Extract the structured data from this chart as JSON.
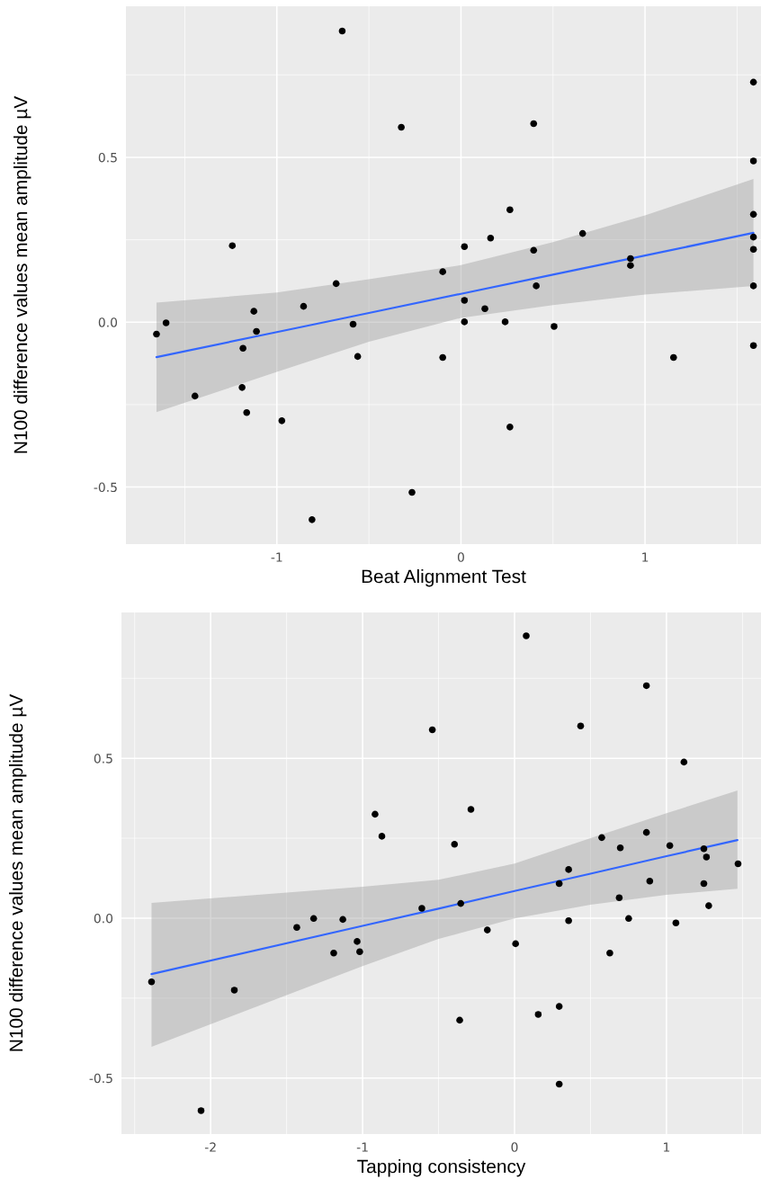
{
  "chart_data": [
    {
      "type": "scatter",
      "xlabel": "Beat Alignment Test",
      "ylabel": "N100 difference values mean amplitude µV",
      "xlim": [
        -1.82,
        1.63
      ],
      "ylim": [
        -0.673,
        0.958
      ],
      "xticks": [
        -1,
        0,
        1
      ],
      "yticks": [
        {
          "value": -0.5,
          "label": "-0.5"
        },
        {
          "value": 0,
          "label": "0.0"
        },
        {
          "value": 0.5,
          "label": "0.5"
        }
      ],
      "grid": true,
      "legend": false,
      "series": [
        {
          "color": "#000000",
          "marker": "circle",
          "x": [
            -1.654,
            -1.602,
            -1.445,
            -1.242,
            -1.184,
            -1.189,
            -1.164,
            -1.125,
            -1.111,
            -0.973,
            -0.855,
            -0.809,
            -0.678,
            -0.645,
            -0.586,
            -0.561,
            -0.324,
            -0.266,
            -0.099,
            -0.099,
            0.019,
            0.019,
            0.019,
            0.13,
            0.161,
            0.24,
            0.266,
            0.266,
            0.395,
            0.395,
            0.409,
            0.506,
            0.661,
            0.921,
            0.921,
            1.155,
            1.589,
            1.589,
            1.589,
            1.589,
            1.589,
            1.589,
            1.589
          ],
          "values": [
            -0.036,
            -0.002,
            -0.224,
            0.232,
            -0.079,
            -0.198,
            -0.274,
            0.033,
            -0.028,
            -0.299,
            0.048,
            -0.599,
            0.117,
            0.883,
            -0.006,
            -0.104,
            0.591,
            -0.516,
            0.153,
            -0.107,
            0.229,
            0.066,
            0.001,
            0.041,
            0.255,
            0.001,
            0.341,
            -0.318,
            0.602,
            0.218,
            0.11,
            -0.013,
            0.269,
            0.193,
            0.172,
            -0.107,
            0.728,
            0.489,
            0.327,
            0.258,
            0.221,
            0.11,
            -0.071
          ]
        },
        {
          "type": "line",
          "color": "#3366ff",
          "marker": "none",
          "x": [
            -1.654,
            -1,
            -0.5,
            0,
            0.5,
            1,
            1.589
          ],
          "values": [
            -0.106,
            -0.03,
            0.028,
            0.086,
            0.144,
            0.202,
            0.271
          ],
          "lower": [
            -0.273,
            -0.151,
            -0.059,
            0.013,
            0.052,
            0.084,
            0.11
          ],
          "upper": [
            0.059,
            0.09,
            0.13,
            0.173,
            0.243,
            0.324,
            0.434
          ]
        }
      ]
    },
    {
      "type": "scatter",
      "xlabel": "Tapping consistency",
      "ylabel": "N100 difference values mean amplitude µV",
      "xlim": [
        -2.587,
        1.622
      ],
      "ylim": [
        -0.675,
        0.956
      ],
      "xticks": [
        -2,
        -1,
        0,
        1
      ],
      "yticks": [
        {
          "value": -0.5,
          "label": "-0.5"
        },
        {
          "value": 0,
          "label": "0.0"
        },
        {
          "value": 0.5,
          "label": "0.5"
        }
      ],
      "grid": true,
      "legend": false,
      "series": [
        {
          "color": "#000000",
          "marker": "circle",
          "x": [
            -2.389,
            -2.063,
            -1.844,
            -1.433,
            -1.322,
            -1.19,
            -1.13,
            -1.036,
            -1.019,
            -0.918,
            -0.873,
            -0.61,
            -0.541,
            -0.395,
            -0.361,
            -0.354,
            -0.287,
            -0.179,
            0.007,
            0.077,
            0.156,
            0.294,
            0.294,
            0.294,
            0.356,
            0.356,
            0.435,
            0.574,
            0.627,
            0.689,
            0.696,
            0.751,
            0.868,
            0.868,
            0.89,
            1.022,
            1.062,
            1.115,
            1.246,
            1.246,
            1.263,
            1.278,
            1.471
          ],
          "values": [
            -0.199,
            -0.602,
            -0.225,
            -0.029,
            -0.001,
            -0.109,
            -0.004,
            -0.073,
            -0.105,
            0.325,
            0.256,
            0.031,
            0.589,
            0.231,
            -0.319,
            0.046,
            0.34,
            -0.037,
            -0.08,
            0.883,
            -0.301,
            -0.276,
            -0.519,
            0.108,
            0.152,
            -0.008,
            0.601,
            0.252,
            -0.109,
            0.064,
            0.22,
            -0.001,
            0.727,
            0.268,
            0.116,
            0.227,
            -0.015,
            0.488,
            0.217,
            0.108,
            0.191,
            0.039,
            0.17
          ]
        },
        {
          "type": "line",
          "color": "#3366ff",
          "marker": "none",
          "x": [
            -2.389,
            -1,
            -0.5,
            0,
            0.5,
            1,
            1.467
          ],
          "values": [
            -0.175,
            -0.024,
            0.03,
            0.085,
            0.139,
            0.194,
            0.244
          ],
          "lower": [
            -0.402,
            -0.15,
            -0.065,
            -0.001,
            0.042,
            0.073,
            0.092
          ],
          "upper": [
            0.048,
            0.098,
            0.12,
            0.171,
            0.25,
            0.328,
            0.399
          ]
        }
      ]
    }
  ]
}
